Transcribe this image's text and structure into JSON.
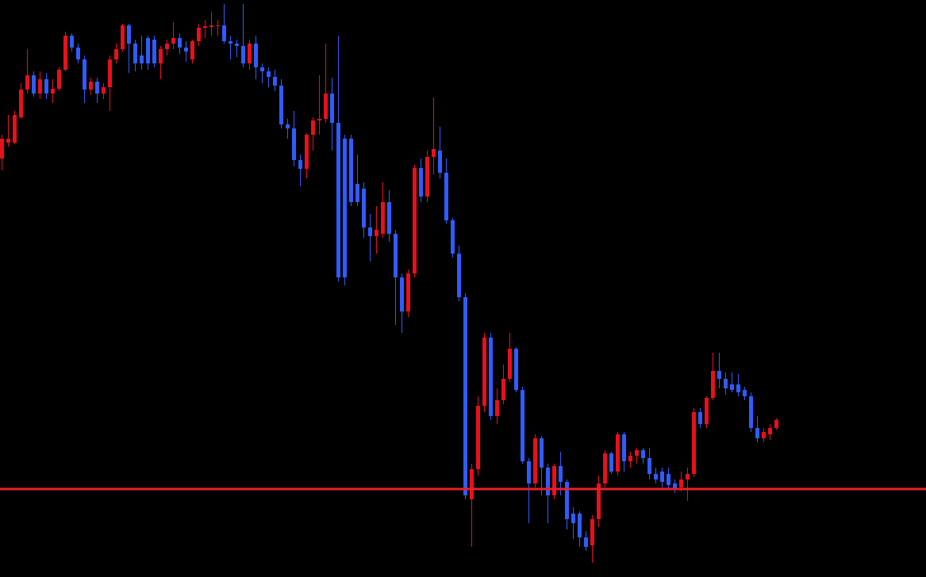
{
  "chart_data": {
    "type": "candlestick",
    "open": [
      528,
      548,
      548,
      580,
      615,
      633,
      610,
      628,
      610,
      616,
      640,
      683,
      668,
      653,
      615,
      625,
      610,
      618,
      653,
      666,
      696,
      673,
      658,
      680,
      678,
      648,
      666,
      673,
      680,
      668,
      653,
      676,
      693,
      694,
      695,
      696,
      676,
      673,
      670,
      648,
      673,
      643,
      638,
      631,
      620,
      571,
      566,
      526,
      515,
      558,
      576,
      578,
      610,
      573,
      553,
      553,
      496,
      490,
      441,
      430,
      433,
      473,
      433,
      378,
      335,
      383,
      516,
      480,
      530,
      538,
      510,
      450,
      408,
      353,
      98,
      136,
      216,
      302,
      203,
      223,
      250,
      288,
      236,
      146,
      118,
      175,
      138,
      103,
      140,
      120,
      80,
      80,
      50,
      40,
      73,
      118,
      156,
      133,
      180,
      146,
      153,
      160,
      150,
      130,
      133,
      130,
      118,
      113,
      123,
      130,
      208,
      193,
      226,
      260,
      250,
      243,
      243,
      236,
      228,
      188,
      175,
      180,
      188
    ],
    "high": [
      558,
      583,
      588,
      623,
      666,
      638,
      638,
      636,
      628,
      643,
      688,
      686,
      673,
      658,
      630,
      630,
      623,
      658,
      673,
      698,
      698,
      678,
      683,
      683,
      683,
      670,
      678,
      700,
      686,
      676,
      678,
      698,
      703,
      713,
      703,
      723,
      683,
      678,
      723,
      678,
      683,
      648,
      643,
      640,
      628,
      578,
      588,
      533,
      560,
      580,
      633,
      673,
      630,
      683,
      558,
      558,
      533,
      498,
      458,
      468,
      498,
      488,
      438,
      383,
      388,
      520,
      528,
      538,
      605,
      568,
      528,
      453,
      418,
      358,
      143,
      228,
      308,
      308,
      238,
      268,
      308,
      290,
      240,
      150,
      180,
      178,
      143,
      143,
      158,
      123,
      88,
      83,
      58,
      78,
      128,
      160,
      158,
      183,
      183,
      158,
      163,
      163,
      163,
      138,
      138,
      138,
      123,
      133,
      138,
      213,
      213,
      228,
      283,
      283,
      258,
      258,
      256,
      240,
      233,
      203,
      188,
      193,
      200
    ],
    "low": [
      513,
      543,
      546,
      578,
      610,
      606,
      603,
      603,
      598,
      613,
      638,
      663,
      648,
      598,
      608,
      598,
      603,
      588,
      648,
      663,
      636,
      638,
      640,
      640,
      643,
      628,
      658,
      666,
      660,
      650,
      648,
      670,
      680,
      683,
      683,
      673,
      653,
      656,
      643,
      640,
      628,
      623,
      618,
      613,
      566,
      553,
      518,
      493,
      503,
      538,
      558,
      573,
      538,
      373,
      368,
      468,
      468,
      428,
      398,
      408,
      428,
      423,
      318,
      308,
      328,
      378,
      473,
      473,
      508,
      503,
      446,
      403,
      348,
      98,
      38,
      128,
      208,
      198,
      193,
      218,
      246,
      233,
      143,
      68,
      113,
      103,
      68,
      98,
      103,
      60,
      48,
      38,
      33,
      18,
      63,
      113,
      130,
      128,
      133,
      138,
      143,
      143,
      123,
      118,
      113,
      110,
      106,
      108,
      96,
      126,
      188,
      188,
      223,
      238,
      230,
      233,
      228,
      223,
      183,
      170,
      170,
      173,
      186
    ],
    "close": [
      553,
      553,
      583,
      615,
      633,
      610,
      628,
      610,
      616,
      640,
      683,
      668,
      653,
      615,
      625,
      610,
      618,
      653,
      666,
      696,
      673,
      648,
      648,
      648,
      648,
      666,
      673,
      680,
      668,
      663,
      676,
      693,
      695,
      696,
      696,
      676,
      673,
      670,
      648,
      673,
      643,
      638,
      631,
      620,
      571,
      566,
      526,
      515,
      558,
      576,
      578,
      610,
      573,
      378,
      378,
      473,
      473,
      441,
      430,
      438,
      473,
      433,
      378,
      335,
      383,
      516,
      480,
      530,
      540,
      510,
      450,
      408,
      353,
      103,
      136,
      216,
      302,
      203,
      223,
      250,
      288,
      236,
      146,
      118,
      175,
      138,
      103,
      140,
      120,
      73,
      68,
      50,
      38,
      73,
      118,
      156,
      133,
      180,
      146,
      153,
      160,
      150,
      130,
      123,
      120,
      116,
      110,
      123,
      130,
      208,
      193,
      226,
      260,
      250,
      238,
      236,
      233,
      228,
      188,
      175,
      183,
      188,
      198
    ],
    "up_color": "#e8101c",
    "down_color": "#2f5cff",
    "ylim": [
      0,
      728
    ],
    "level_line": {
      "value": 111,
      "color": "#e8202a"
    }
  }
}
